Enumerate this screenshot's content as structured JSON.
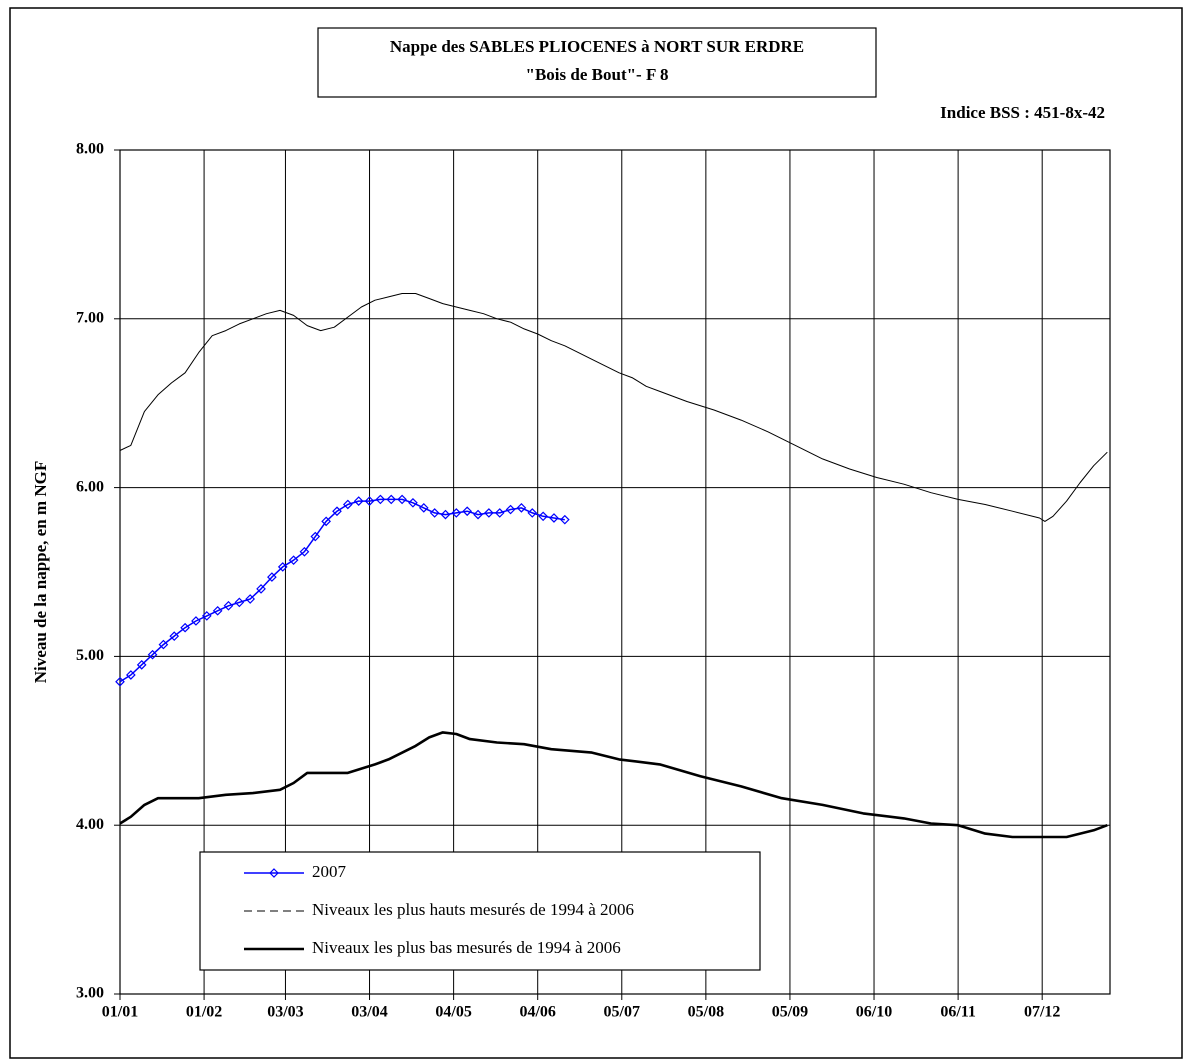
{
  "chart_data": {
    "type": "line",
    "title": "Nappe des SABLES PLIOCENES à NORT SUR ERDRE",
    "subtitle": "\"Bois de Bout\"-  F 8",
    "annotation": "Indice BSS : 451-8x-42",
    "y_label": "Niveau de la nappe, en m NGF",
    "xlim": [
      1,
      366
    ],
    "xticks": [
      {
        "value": 1,
        "label": "01/01"
      },
      {
        "value": 32,
        "label": "01/02"
      },
      {
        "value": 62,
        "label": "03/03"
      },
      {
        "value": 93,
        "label": "03/04"
      },
      {
        "value": 124,
        "label": "04/05"
      },
      {
        "value": 155,
        "label": "04/06"
      },
      {
        "value": 186,
        "label": "05/07"
      },
      {
        "value": 217,
        "label": "05/08"
      },
      {
        "value": 248,
        "label": "05/09"
      },
      {
        "value": 279,
        "label": "06/10"
      },
      {
        "value": 310,
        "label": "06/11"
      },
      {
        "value": 341,
        "label": "07/12"
      }
    ],
    "ylim": [
      3,
      8
    ],
    "yticks": [
      {
        "value": 3,
        "label": "3.00"
      },
      {
        "value": 4,
        "label": "4.00"
      },
      {
        "value": 5,
        "label": "5.00"
      },
      {
        "value": 6,
        "label": "6.00"
      },
      {
        "value": 7,
        "label": "7.00"
      },
      {
        "value": 8,
        "label": "8.00"
      }
    ],
    "grid": true,
    "legend": "lower-left",
    "series": [
      {
        "name": "2007",
        "color": "#0000ff",
        "marker": "diamond",
        "linestyle": "solid",
        "x": [
          1,
          5,
          9,
          13,
          17,
          21,
          25,
          29,
          33,
          37,
          41,
          45,
          49,
          53,
          57,
          61,
          65,
          69,
          73,
          77,
          81,
          85,
          89,
          93,
          97,
          101,
          105,
          109,
          113,
          117,
          121,
          125,
          129,
          133,
          137,
          141,
          145,
          149,
          153,
          157,
          161,
          165
        ],
        "values": [
          4.85,
          4.89,
          4.95,
          5.01,
          5.07,
          5.12,
          5.17,
          5.21,
          5.24,
          5.27,
          5.3,
          5.32,
          5.34,
          5.4,
          5.47,
          5.53,
          5.57,
          5.62,
          5.71,
          5.8,
          5.86,
          5.9,
          5.92,
          5.92,
          5.93,
          5.93,
          5.93,
          5.91,
          5.88,
          5.85,
          5.84,
          5.85,
          5.86,
          5.84,
          5.85,
          5.85,
          5.87,
          5.88,
          5.85,
          5.83,
          5.82,
          5.81
        ]
      },
      {
        "name": "Niveaux les plus hauts mesurés de 1994 à 2006",
        "color": "#000000",
        "linestyle": "dashed",
        "x": [
          1,
          5,
          10,
          15,
          20,
          25,
          30,
          35,
          40,
          45,
          50,
          55,
          60,
          65,
          70,
          75,
          80,
          85,
          90,
          95,
          100,
          105,
          110,
          115,
          120,
          125,
          130,
          135,
          140,
          145,
          150,
          155,
          160,
          165,
          170,
          175,
          180,
          185,
          190,
          195,
          200,
          210,
          220,
          230,
          240,
          250,
          260,
          270,
          280,
          290,
          300,
          310,
          320,
          330,
          340,
          342,
          345,
          350,
          355,
          360,
          365
        ],
        "values": [
          6.22,
          6.25,
          6.45,
          6.55,
          6.62,
          6.68,
          6.8,
          6.9,
          6.93,
          6.97,
          7.0,
          7.03,
          7.05,
          7.02,
          6.96,
          6.93,
          6.95,
          7.01,
          7.07,
          7.11,
          7.13,
          7.15,
          7.15,
          7.12,
          7.09,
          7.07,
          7.05,
          7.03,
          7.0,
          6.98,
          6.94,
          6.91,
          6.87,
          6.84,
          6.8,
          6.76,
          6.72,
          6.68,
          6.65,
          6.6,
          6.57,
          6.51,
          6.46,
          6.4,
          6.33,
          6.25,
          6.17,
          6.11,
          6.06,
          6.02,
          5.97,
          5.93,
          5.9,
          5.86,
          5.82,
          5.8,
          5.83,
          5.92,
          6.03,
          6.13,
          6.21
        ]
      },
      {
        "name": "Niveaux les plus bas mesurés de 1994 à 2006",
        "color": "#000000",
        "linestyle": "solid",
        "x": [
          1,
          5,
          10,
          15,
          30,
          40,
          50,
          60,
          65,
          70,
          85,
          95,
          100,
          110,
          115,
          120,
          125,
          130,
          140,
          150,
          160,
          175,
          185,
          200,
          215,
          230,
          245,
          260,
          275,
          290,
          300,
          310,
          320,
          330,
          350,
          360,
          365
        ],
        "values": [
          4.01,
          4.05,
          4.12,
          4.16,
          4.16,
          4.18,
          4.19,
          4.21,
          4.25,
          4.31,
          4.31,
          4.36,
          4.39,
          4.47,
          4.52,
          4.55,
          4.54,
          4.51,
          4.49,
          4.48,
          4.45,
          4.43,
          4.39,
          4.36,
          4.29,
          4.23,
          4.16,
          4.12,
          4.07,
          4.04,
          4.01,
          4.0,
          3.95,
          3.93,
          3.93,
          3.97,
          4.0
        ]
      }
    ]
  }
}
